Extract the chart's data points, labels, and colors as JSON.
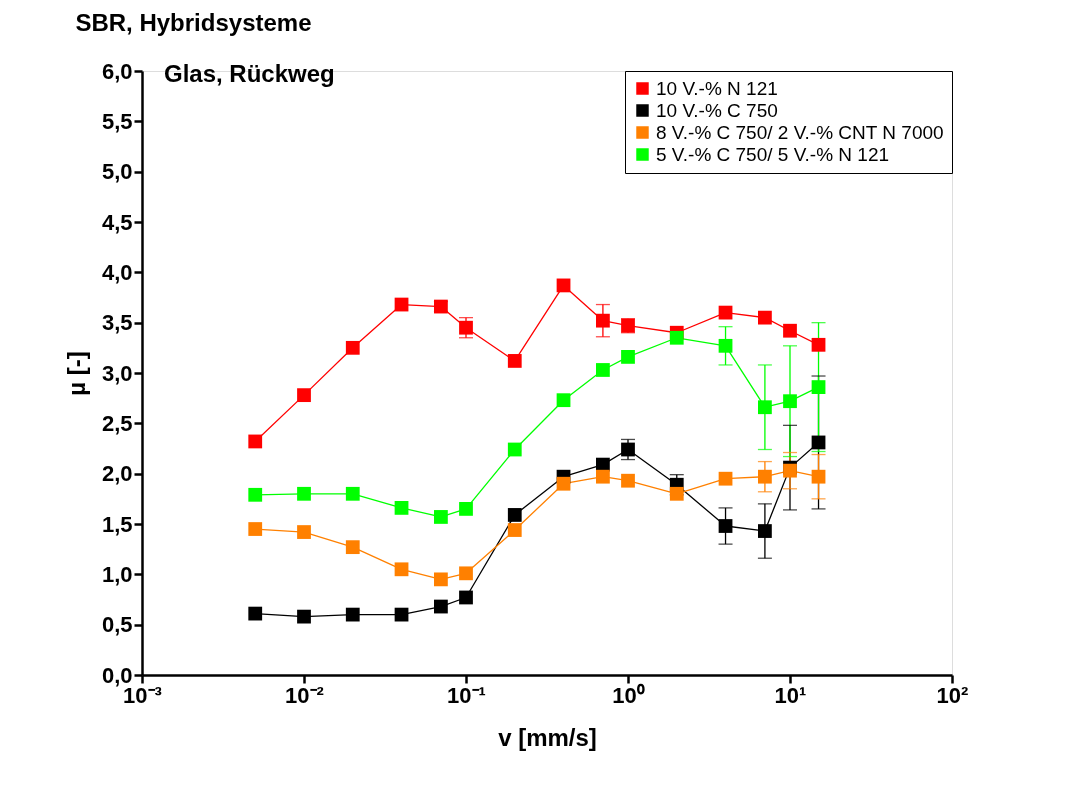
{
  "chart_data": {
    "type": "line",
    "title": "SBR, Hybridsysteme",
    "subtitle": "Glas, Rückweg",
    "xlabel": "v [mm/s]",
    "ylabel": "µ [-]",
    "x": [
      0.005,
      0.01,
      0.02,
      0.04,
      0.07,
      0.1,
      0.2,
      0.4,
      0.7,
      1,
      2,
      4,
      7,
      10,
      15
    ],
    "series": [
      {
        "name": "10 V.-% N 121",
        "color": "#ff0000",
        "values": [
          2.32,
          2.78,
          3.25,
          3.68,
          3.66,
          3.45,
          3.12,
          3.87,
          3.52,
          3.47,
          3.4,
          3.6,
          3.55,
          3.42,
          3.28
        ],
        "errors": [
          null,
          null,
          null,
          null,
          0.05,
          0.1,
          null,
          null,
          0.16,
          0.07,
          null,
          null,
          null,
          null,
          null
        ]
      },
      {
        "name": "10 V.-% C 750",
        "color": "#000000",
        "values": [
          0.61,
          0.58,
          0.6,
          0.6,
          0.68,
          0.77,
          1.59,
          1.97,
          2.09,
          2.24,
          1.89,
          1.48,
          1.43,
          2.06,
          2.31
        ],
        "errors": [
          null,
          null,
          null,
          null,
          null,
          null,
          null,
          null,
          null,
          0.1,
          0.1,
          0.18,
          0.27,
          0.42,
          0.66
        ]
      },
      {
        "name": "8 V.-% C 750/ 2 V.-% CNT N 7000",
        "color": "#ff8000",
        "values": [
          1.45,
          1.42,
          1.27,
          1.05,
          0.95,
          1.01,
          1.44,
          1.9,
          1.97,
          1.93,
          1.8,
          1.95,
          1.97,
          2.03,
          1.97
        ],
        "errors": [
          null,
          null,
          null,
          null,
          null,
          null,
          null,
          null,
          null,
          null,
          null,
          null,
          0.15,
          0.18,
          0.22
        ]
      },
      {
        "name": "5 V.-% C 750/ 5 V.-% N 121",
        "color": "#00ff00",
        "values": [
          1.79,
          1.8,
          1.8,
          1.66,
          1.57,
          1.65,
          2.24,
          2.73,
          3.03,
          3.16,
          3.35,
          3.27,
          2.66,
          2.72,
          2.86
        ],
        "errors": [
          null,
          null,
          null,
          null,
          null,
          null,
          null,
          null,
          null,
          null,
          null,
          0.19,
          0.42,
          0.55,
          0.64
        ]
      }
    ],
    "log": "x",
    "xlim": [
      0.001,
      100
    ],
    "xticks": [
      {
        "value": 0.001,
        "label": "10⁻³"
      },
      {
        "value": 0.01,
        "label": "10⁻²"
      },
      {
        "value": 0.1,
        "label": "10⁻¹"
      },
      {
        "value": 1,
        "label": "10⁰"
      },
      {
        "value": 10,
        "label": "10¹"
      },
      {
        "value": 100,
        "label": "10²"
      }
    ],
    "ylim": [
      0,
      6
    ],
    "yticks": [
      {
        "value": 0,
        "label": "0,0"
      },
      {
        "value": 0.5,
        "label": "0,5"
      },
      {
        "value": 1,
        "label": "1,0"
      },
      {
        "value": 1.5,
        "label": "1,5"
      },
      {
        "value": 2,
        "label": "2,0"
      },
      {
        "value": 2.5,
        "label": "2,5"
      },
      {
        "value": 3,
        "label": "3,0"
      },
      {
        "value": 3.5,
        "label": "3,5"
      },
      {
        "value": 4,
        "label": "4,0"
      },
      {
        "value": 4.5,
        "label": "4,5"
      },
      {
        "value": 5,
        "label": "5,0"
      },
      {
        "value": 5.5,
        "label": "5,5"
      },
      {
        "value": 6,
        "label": "6,0"
      }
    ],
    "grid": false,
    "legend": "top right",
    "marker": "square",
    "line_style": "solid"
  }
}
